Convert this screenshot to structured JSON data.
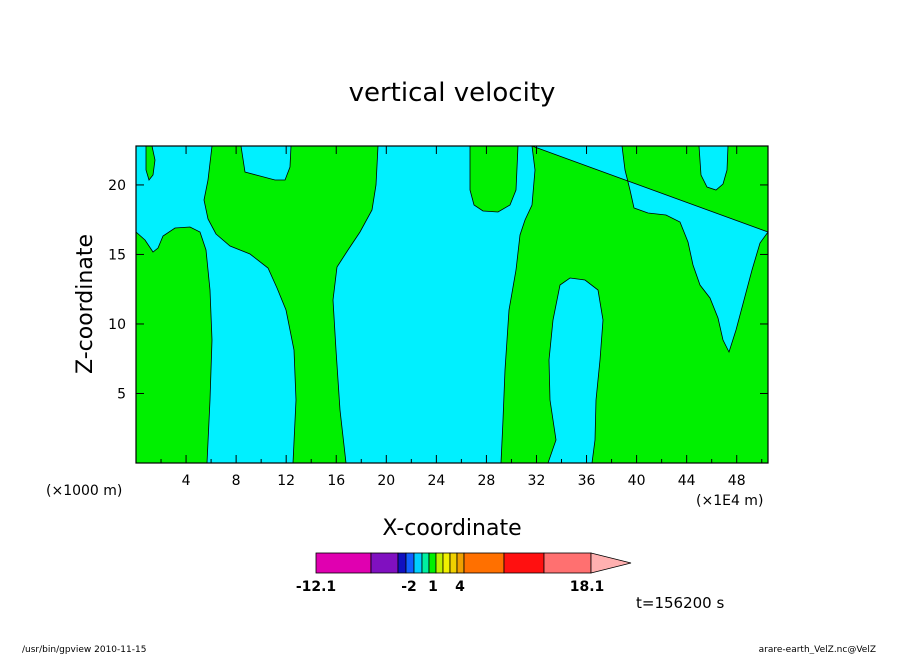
{
  "chart_data": {
    "type": "contour",
    "title": "vertical velocity",
    "xlabel": "X-coordinate",
    "ylabel": "Z-coordinate",
    "x_unit_left": "(×1000 m)",
    "x_unit_right": "(×1E4 m)",
    "xlim": [
      0,
      50.5
    ],
    "ylim": [
      0,
      22.8
    ],
    "xticks": [
      4,
      8,
      12,
      16,
      20,
      24,
      28,
      32,
      36,
      40,
      44,
      48
    ],
    "yticks": [
      5,
      10,
      15,
      20
    ],
    "time_label": "t=156200 s",
    "colorbar": {
      "levels": [
        "-12.1",
        "-2",
        "1",
        "4",
        "18.1"
      ],
      "colors": [
        "#e000b0",
        "#8010c0",
        "#1010c0",
        "#1060ff",
        "#00d0ff",
        "#00f0a0",
        "#00f000",
        "#c0f000",
        "#f0f000",
        "#f0d000",
        "#f0a000",
        "#ff7000",
        "#ff1010",
        "#ff7070",
        "#ffb0b0"
      ]
    },
    "fill_colors": {
      "negative": "#00f0ff",
      "positive": "#00f000"
    }
  },
  "footer": {
    "left": "/usr/bin/gpview   2010-11-15",
    "right": "arare-earth_VelZ.nc@VelZ"
  }
}
